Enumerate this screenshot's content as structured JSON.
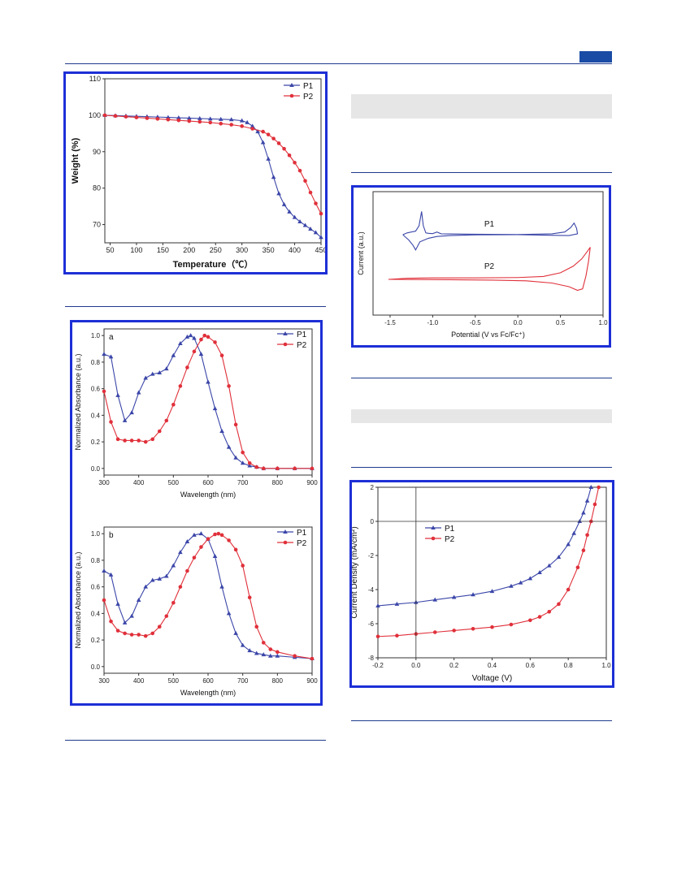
{
  "page": {
    "accent": "#1a4ca5",
    "rule_color": "#1f3b8c",
    "frame_color": "#1d2fd6"
  },
  "colors": {
    "P1": "#3b46a8",
    "P2": "#e0303a"
  },
  "chart_data": [
    {
      "id": "tga",
      "type": "line",
      "title": "",
      "xlabel": "Temperature（℃）",
      "ylabel": "Weight (%)",
      "xlim": [
        40,
        450
      ],
      "ylim": [
        65,
        110
      ],
      "xticks": [
        50,
        100,
        150,
        200,
        250,
        300,
        350,
        400,
        450
      ],
      "yticks": [
        70,
        80,
        90,
        100,
        110
      ],
      "grid": false,
      "legend": "top-right",
      "series": [
        {
          "name": "P1",
          "marker": "triangle",
          "x": [
            40,
            60,
            80,
            100,
            120,
            140,
            160,
            180,
            200,
            220,
            240,
            260,
            280,
            300,
            310,
            320,
            330,
            340,
            350,
            360,
            370,
            380,
            390,
            400,
            410,
            420,
            430,
            440,
            450
          ],
          "y": [
            100,
            99.9,
            99.8,
            99.7,
            99.6,
            99.5,
            99.4,
            99.3,
            99.2,
            99.1,
            99.0,
            98.9,
            98.8,
            98.5,
            98.0,
            97.0,
            95.5,
            92.5,
            88,
            83,
            78.5,
            75.5,
            73.5,
            72,
            70.8,
            69.8,
            68.8,
            67.8,
            66.5
          ]
        },
        {
          "name": "P2",
          "marker": "circle",
          "x": [
            40,
            60,
            80,
            100,
            120,
            140,
            160,
            180,
            200,
            220,
            240,
            260,
            280,
            300,
            320,
            340,
            350,
            360,
            370,
            380,
            390,
            400,
            410,
            420,
            430,
            440,
            450
          ],
          "y": [
            100,
            99.8,
            99.6,
            99.4,
            99.2,
            99.0,
            98.8,
            98.6,
            98.4,
            98.2,
            98.0,
            97.7,
            97.4,
            97.0,
            96.3,
            95.5,
            94.7,
            93.6,
            92.3,
            90.8,
            89.0,
            87.0,
            84.8,
            82.0,
            78.8,
            75.8,
            73.0
          ]
        }
      ]
    },
    {
      "id": "cv",
      "type": "line",
      "title": "",
      "xlabel": "Potential (V vs Fc/Fc⁺)",
      "ylabel": "Current (a.u.)",
      "xlim": [
        -1.7,
        1.0
      ],
      "xticks": [
        -1.5,
        -1.0,
        -0.5,
        0.0,
        0.5,
        1.0
      ],
      "series": [
        {
          "name": "P1",
          "label_on_plot": "P1",
          "points": [
            [
              -1.35,
              0
            ],
            [
              -1.3,
              0.2
            ],
            [
              -1.2,
              0.4
            ],
            [
              -1.16,
              1.0
            ],
            [
              -1.13,
              2.6
            ],
            [
              -1.11,
              1.0
            ],
            [
              -1.08,
              0.2
            ],
            [
              -1.05,
              0.15
            ],
            [
              -1.0,
              0.12
            ],
            [
              -0.95,
              0.3
            ],
            [
              -0.9,
              0.1
            ],
            [
              -0.5,
              0.05
            ],
            [
              0,
              0.02
            ],
            [
              0.4,
              0.1
            ],
            [
              0.55,
              0.3
            ],
            [
              0.62,
              0.8
            ],
            [
              0.66,
              1.3
            ],
            [
              0.69,
              0.7
            ],
            [
              0.7,
              0.1
            ],
            [
              0.6,
              -0.1
            ],
            [
              0.3,
              -0.05
            ],
            [
              0,
              0
            ],
            [
              -0.5,
              -0.02
            ],
            [
              -0.8,
              -0.1
            ],
            [
              -0.95,
              -0.2
            ],
            [
              -1.05,
              -0.4
            ],
            [
              -1.15,
              -0.8
            ],
            [
              -1.2,
              -1.7
            ],
            [
              -1.23,
              -1.2
            ],
            [
              -1.28,
              -0.6
            ],
            [
              -1.35,
              0
            ]
          ]
        },
        {
          "name": "P2",
          "label_on_plot": "P2",
          "points": [
            [
              -1.52,
              0
            ],
            [
              -1.3,
              0.15
            ],
            [
              -1.0,
              0.2
            ],
            [
              -0.5,
              0.2
            ],
            [
              0,
              0.25
            ],
            [
              0.3,
              0.4
            ],
            [
              0.5,
              0.9
            ],
            [
              0.65,
              1.8
            ],
            [
              0.75,
              2.8
            ],
            [
              0.82,
              3.9
            ],
            [
              0.85,
              4.4
            ],
            [
              0.83,
              2.5
            ],
            [
              0.8,
              0.5
            ],
            [
              0.76,
              -1.3
            ],
            [
              0.7,
              -1.5
            ],
            [
              0.6,
              -1.0
            ],
            [
              0.4,
              -0.5
            ],
            [
              0.1,
              -0.2
            ],
            [
              -0.3,
              -0.1
            ],
            [
              -0.8,
              -0.05
            ],
            [
              -1.2,
              -0.02
            ],
            [
              -1.52,
              0
            ]
          ]
        }
      ]
    },
    {
      "id": "uv_a",
      "type": "line",
      "panel_label": "a",
      "title": "",
      "xlabel": "Wavelength (nm)",
      "ylabel": "Normalized Absorbance (a.u.)",
      "xlim": [
        300,
        900
      ],
      "ylim": [
        -0.05,
        1.05
      ],
      "xticks": [
        300,
        400,
        500,
        600,
        700,
        800,
        900
      ],
      "yticks": [
        0.0,
        0.2,
        0.4,
        0.6,
        0.8,
        1.0
      ],
      "legend": "top-right",
      "series": [
        {
          "name": "P1",
          "marker": "triangle",
          "x": [
            300,
            320,
            340,
            360,
            380,
            400,
            420,
            440,
            460,
            480,
            500,
            520,
            540,
            550,
            560,
            580,
            600,
            620,
            640,
            660,
            680,
            700,
            720,
            740,
            760,
            800,
            850,
            900
          ],
          "y": [
            0.86,
            0.84,
            0.55,
            0.36,
            0.42,
            0.57,
            0.68,
            0.71,
            0.72,
            0.75,
            0.85,
            0.94,
            0.99,
            1.0,
            0.98,
            0.86,
            0.65,
            0.45,
            0.28,
            0.16,
            0.08,
            0.04,
            0.02,
            0.01,
            0.0,
            0.0,
            0.0,
            0.0
          ]
        },
        {
          "name": "P2",
          "marker": "circle",
          "x": [
            300,
            320,
            340,
            360,
            380,
            400,
            420,
            440,
            460,
            480,
            500,
            520,
            540,
            560,
            580,
            590,
            600,
            620,
            640,
            660,
            680,
            700,
            720,
            740,
            760,
            800,
            850,
            900
          ],
          "y": [
            0.58,
            0.35,
            0.22,
            0.21,
            0.21,
            0.21,
            0.2,
            0.22,
            0.28,
            0.36,
            0.48,
            0.62,
            0.76,
            0.88,
            0.97,
            1.0,
            0.99,
            0.95,
            0.85,
            0.62,
            0.33,
            0.12,
            0.04,
            0.01,
            0.0,
            0.0,
            0.0,
            0.0
          ]
        }
      ]
    },
    {
      "id": "uv_b",
      "type": "line",
      "panel_label": "b",
      "title": "",
      "xlabel": "Wavelength (nm)",
      "ylabel": "Normalized Absorbance (a.u.)",
      "xlim": [
        300,
        900
      ],
      "ylim": [
        -0.05,
        1.05
      ],
      "xticks": [
        300,
        400,
        500,
        600,
        700,
        800,
        900
      ],
      "yticks": [
        0.0,
        0.2,
        0.4,
        0.6,
        0.8,
        1.0
      ],
      "legend": "top-right",
      "series": [
        {
          "name": "P1",
          "marker": "triangle",
          "x": [
            300,
            320,
            340,
            360,
            380,
            400,
            420,
            440,
            460,
            480,
            500,
            520,
            540,
            560,
            580,
            600,
            620,
            640,
            660,
            680,
            700,
            720,
            740,
            760,
            780,
            800,
            850,
            900
          ],
          "y": [
            0.72,
            0.69,
            0.47,
            0.33,
            0.38,
            0.5,
            0.6,
            0.65,
            0.66,
            0.68,
            0.76,
            0.86,
            0.94,
            0.99,
            1.0,
            0.96,
            0.83,
            0.6,
            0.4,
            0.25,
            0.16,
            0.12,
            0.1,
            0.09,
            0.08,
            0.08,
            0.07,
            0.06
          ]
        },
        {
          "name": "P2",
          "marker": "circle",
          "x": [
            300,
            320,
            340,
            360,
            380,
            400,
            420,
            440,
            460,
            480,
            500,
            520,
            540,
            560,
            580,
            600,
            620,
            630,
            640,
            660,
            680,
            700,
            720,
            740,
            760,
            780,
            800,
            850,
            900
          ],
          "y": [
            0.5,
            0.34,
            0.27,
            0.25,
            0.24,
            0.24,
            0.23,
            0.25,
            0.3,
            0.38,
            0.48,
            0.6,
            0.72,
            0.82,
            0.9,
            0.96,
            0.995,
            1.0,
            0.99,
            0.95,
            0.88,
            0.76,
            0.52,
            0.3,
            0.18,
            0.13,
            0.11,
            0.08,
            0.06
          ]
        }
      ]
    },
    {
      "id": "jv",
      "type": "line",
      "title": "",
      "xlabel": "Voltage (V)",
      "ylabel": "Current Density (mA/cm²)",
      "xlim": [
        -0.2,
        1.0
      ],
      "ylim": [
        -8,
        2
      ],
      "xticks": [
        -0.2,
        0.0,
        0.2,
        0.4,
        0.6,
        0.8,
        1.0
      ],
      "yticks": [
        -8,
        -6,
        -4,
        -2,
        0,
        2
      ],
      "legend": "top-left",
      "series": [
        {
          "name": "P1",
          "marker": "triangle",
          "x": [
            -0.2,
            -0.1,
            0,
            0.1,
            0.2,
            0.3,
            0.4,
            0.5,
            0.55,
            0.6,
            0.65,
            0.7,
            0.75,
            0.8,
            0.83,
            0.86,
            0.88,
            0.9,
            0.92
          ],
          "y": [
            -4.95,
            -4.85,
            -4.75,
            -4.6,
            -4.45,
            -4.3,
            -4.1,
            -3.8,
            -3.6,
            -3.35,
            -3.0,
            -2.6,
            -2.1,
            -1.35,
            -0.7,
            0.0,
            0.5,
            1.2,
            2.0
          ]
        },
        {
          "name": "P2",
          "marker": "circle",
          "x": [
            -0.2,
            -0.1,
            0,
            0.1,
            0.2,
            0.3,
            0.4,
            0.5,
            0.6,
            0.65,
            0.7,
            0.75,
            0.8,
            0.85,
            0.88,
            0.9,
            0.92,
            0.94,
            0.96
          ],
          "y": [
            -6.75,
            -6.7,
            -6.6,
            -6.5,
            -6.4,
            -6.3,
            -6.2,
            -6.05,
            -5.8,
            -5.6,
            -5.3,
            -4.85,
            -4.0,
            -2.7,
            -1.7,
            -0.8,
            0.0,
            1.0,
            2.0
          ]
        }
      ]
    }
  ]
}
